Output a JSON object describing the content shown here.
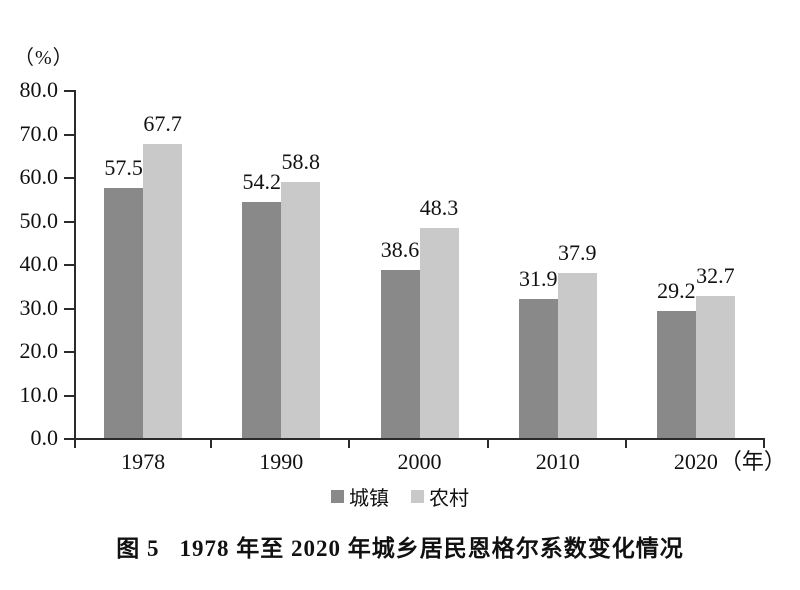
{
  "figure": {
    "unit_label": "（%）",
    "caption": {
      "prefix": "图 5",
      "text": "1978 年至 2020 年城乡居民恩格尔系数变化情况"
    }
  },
  "chart_data": {
    "type": "bar",
    "title": "图 5 1978 年至 2020 年城乡居民恩格尔系数变化情况",
    "unit_label": "（%）",
    "xlabel": "",
    "ylabel": "",
    "x_axis_suffix": "（年）",
    "categories": [
      "1978",
      "1990",
      "2000",
      "2010",
      "2020"
    ],
    "series": [
      {
        "id": "urban",
        "name": "城镇",
        "color": "#898989",
        "values": [
          57.5,
          54.2,
          38.6,
          31.9,
          29.2
        ]
      },
      {
        "id": "rural",
        "name": "农村",
        "color": "#c9c9c9",
        "values": [
          67.7,
          58.8,
          48.3,
          37.9,
          32.7
        ]
      }
    ],
    "ylim": [
      0.0,
      80.0
    ],
    "y_ticks": [
      "0.0",
      "10.0",
      "20.0",
      "30.0",
      "40.0",
      "50.0",
      "60.0",
      "70.0",
      "80.0"
    ],
    "grid": false,
    "value_labels": true,
    "legend_position": "bottom",
    "axis_color": "#2b2b2b",
    "text_color": "#111111"
  }
}
